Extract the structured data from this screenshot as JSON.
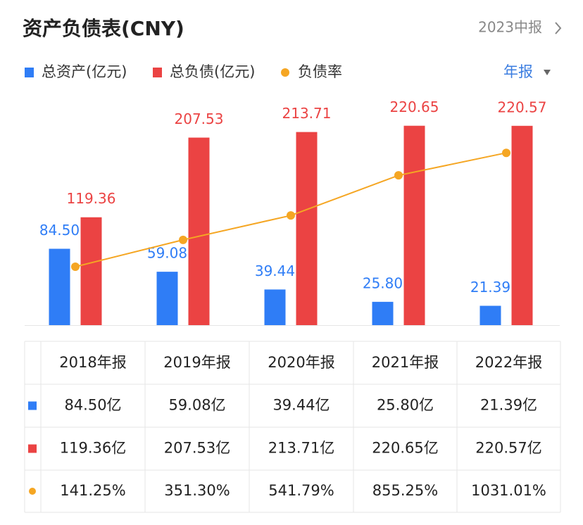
{
  "chart_data": {
    "type": "bar",
    "title": "资产负债表(CNY)",
    "categories": [
      "2018年报",
      "2019年报",
      "2020年报",
      "2021年报",
      "2022年报"
    ],
    "series": [
      {
        "name": "总资产(亿元)",
        "color": "#2f7df6",
        "values": [
          84.5,
          59.08,
          39.44,
          25.8,
          21.39
        ],
        "value_labels": [
          "84.50",
          "59.08",
          "39.44",
          "25.80",
          "21.39"
        ]
      },
      {
        "name": "总负债(亿元)",
        "color": "#eb4343",
        "values": [
          119.36,
          207.53,
          213.71,
          220.65,
          220.57
        ]
      },
      {
        "name": "负债率",
        "type": "line",
        "axis": "y2",
        "color": "#f5a623",
        "values": [
          141.25,
          351.3,
          541.79,
          855.25,
          1031.01
        ]
      }
    ],
    "ylim": [
      0,
      250
    ],
    "y2lim": [
      -315,
      1450
    ],
    "grid": false
  },
  "controls": {
    "period": "2023中报",
    "frequency": "年报"
  },
  "table": {
    "rows": [
      [
        "84.50亿",
        "59.08亿",
        "39.44亿",
        "25.80亿",
        "21.39亿"
      ],
      [
        "119.36亿",
        "207.53亿",
        "213.71亿",
        "220.65亿",
        "220.57亿"
      ],
      [
        "141.25%",
        "351.30%",
        "541.79%",
        "855.25%",
        "1031.01%"
      ]
    ]
  }
}
